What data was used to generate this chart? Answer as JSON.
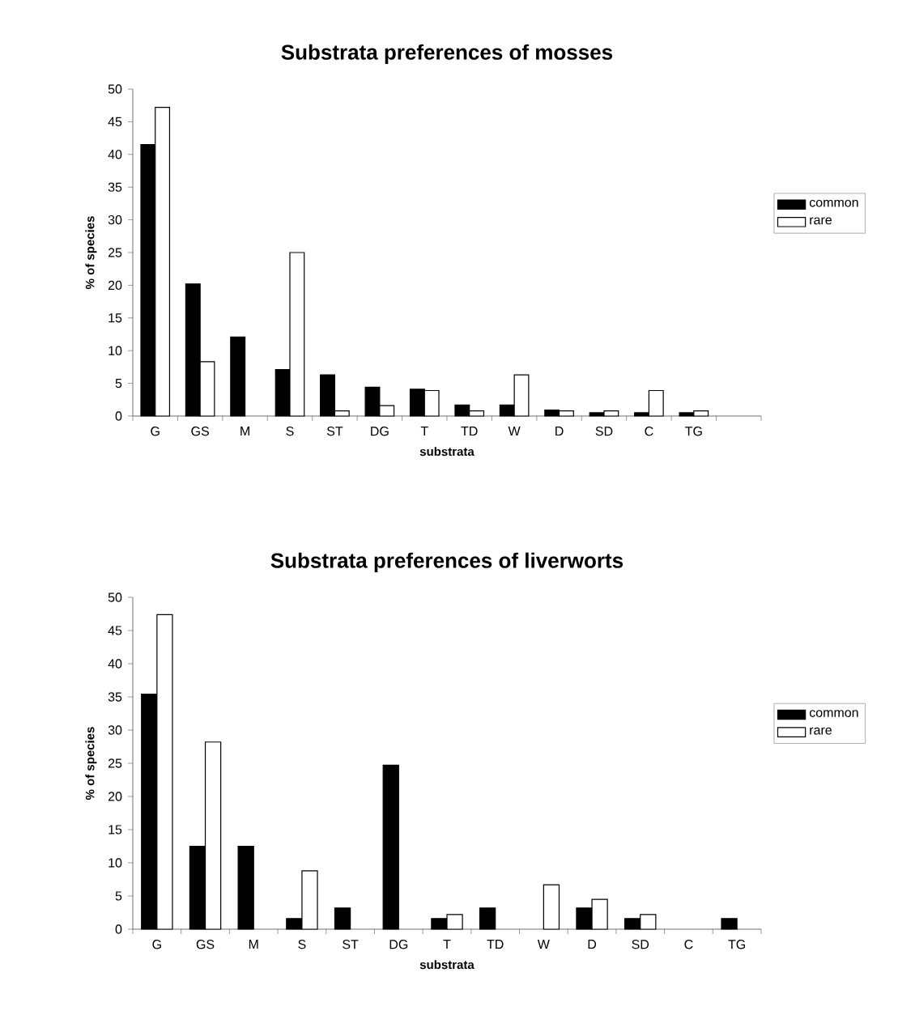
{
  "chart_data": [
    {
      "type": "bar",
      "title": "Substrata preferences of mosses",
      "xlabel": "substrata",
      "ylabel": "% of species",
      "categories": [
        "G",
        "GS",
        "M",
        "S",
        "ST",
        "DG",
        "T",
        "TD",
        "W",
        "D",
        "SD",
        "C",
        "TG",
        null
      ],
      "series": [
        {
          "name": "common",
          "color": "#000000",
          "values": [
            41.5,
            20.2,
            12.1,
            7.1,
            6.3,
            4.4,
            4.1,
            1.7,
            1.7,
            0.9,
            0.5,
            0.5,
            0.5,
            null
          ]
        },
        {
          "name": "rare",
          "color": "#ffffff",
          "values": [
            47.2,
            8.3,
            null,
            25,
            0.8,
            1.6,
            3.9,
            0.8,
            6.3,
            0.8,
            0.8,
            3.9,
            0.8,
            null
          ]
        }
      ],
      "ylim": [
        0,
        50
      ],
      "yticks": [
        0,
        5,
        10,
        15,
        20,
        25,
        30,
        35,
        40,
        45,
        50
      ],
      "legend": "right"
    },
    {
      "type": "bar",
      "title": "Substrata preferences of liverworts",
      "xlabel": "substrata",
      "ylabel": "% of species",
      "categories": [
        "G",
        "GS",
        "M",
        "S",
        "ST",
        "DG",
        "T",
        "TD",
        "W",
        "D",
        "SD",
        "C",
        "TG"
      ],
      "series": [
        {
          "name": "common",
          "color": "#000000",
          "values": [
            35.4,
            12.5,
            12.5,
            1.6,
            3.2,
            24.7,
            1.6,
            3.2,
            null,
            3.2,
            1.6,
            null,
            1.6
          ]
        },
        {
          "name": "rare",
          "color": "#ffffff",
          "values": [
            47.4,
            28.2,
            null,
            8.8,
            null,
            null,
            2.2,
            null,
            6.7,
            4.5,
            2.2,
            null,
            null
          ]
        }
      ],
      "ylim": [
        0,
        50
      ],
      "yticks": [
        0,
        5,
        10,
        15,
        20,
        25,
        30,
        35,
        40,
        45,
        50
      ],
      "legend": "right"
    }
  ]
}
